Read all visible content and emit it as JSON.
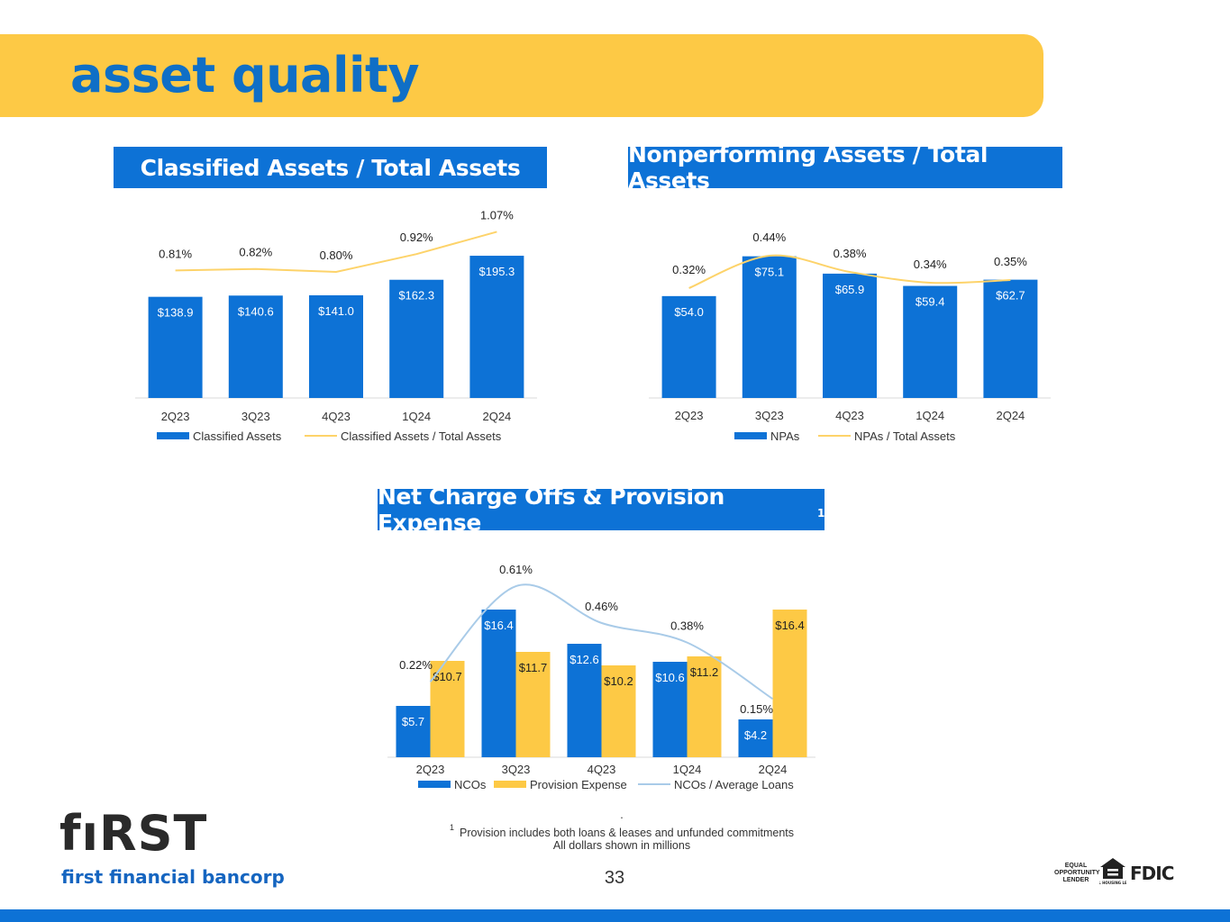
{
  "page": {
    "title": "asset quality",
    "page_number": "33",
    "footnote_dot": ".",
    "footnote_marker": "1",
    "footnote_line1": "Provision includes both loans & leases and unfunded commitments",
    "footnote_line2": "All dollars shown in millions",
    "logo_word": "fıRST",
    "logo_sub": "first financial bancorp",
    "badge_eol": [
      "EQUAL",
      "OPPORTUNITY",
      "LENDER"
    ],
    "badge_ehl": "EQUAL HOUSING LENDER",
    "badge_fdic": "FDIC"
  },
  "colors": {
    "blue": "#0d72d6",
    "gold": "#fdc945",
    "line_gold": "#fdd36a",
    "line_blue": "#a9cbe8",
    "axis": "#d9d9d9"
  },
  "chart_data": [
    {
      "type": "bar",
      "header": "Classified Assets / Total Assets",
      "categories": [
        "2Q23",
        "3Q23",
        "4Q23",
        "1Q24",
        "2Q24"
      ],
      "series": [
        {
          "name": "Classified Assets",
          "values": [
            138.9,
            140.6,
            141.0,
            162.3,
            195.3
          ],
          "labels": [
            "$138.9",
            "$140.6",
            "$141.0",
            "$162.3",
            "$195.3"
          ],
          "kind": "bar",
          "color": "#0d72d6"
        },
        {
          "name": "Classified Assets / Total Assets",
          "values": [
            0.81,
            0.82,
            0.8,
            0.92,
            1.07
          ],
          "labels": [
            "0.81%",
            "0.82%",
            "0.80%",
            "0.92%",
            "1.07%"
          ],
          "kind": "line",
          "color": "#fdd36a"
        }
      ],
      "legend": "bottom"
    },
    {
      "type": "bar",
      "header": "Nonperforming Assets / Total Assets",
      "categories": [
        "2Q23",
        "3Q23",
        "4Q23",
        "1Q24",
        "2Q24"
      ],
      "series": [
        {
          "name": "NPAs",
          "values": [
            54.0,
            75.1,
            65.9,
            59.4,
            62.7
          ],
          "labels": [
            "$54.0",
            "$75.1",
            "$65.9",
            "$59.4",
            "$62.7"
          ],
          "kind": "bar",
          "color": "#0d72d6"
        },
        {
          "name": "NPAs / Total Assets",
          "values": [
            0.32,
            0.44,
            0.38,
            0.34,
            0.35
          ],
          "labels": [
            "0.32%",
            "0.44%",
            "0.38%",
            "0.34%",
            "0.35%"
          ],
          "kind": "line",
          "color": "#fdd36a"
        }
      ],
      "legend": "bottom"
    },
    {
      "type": "bar",
      "header": "Net Charge Offs & Provision Expense",
      "header_sup": "1",
      "categories": [
        "2Q23",
        "3Q23",
        "4Q23",
        "1Q24",
        "2Q24"
      ],
      "series": [
        {
          "name": "NCOs",
          "values": [
            5.7,
            16.4,
            12.6,
            10.6,
            4.2
          ],
          "labels": [
            "$5.7",
            "$16.4",
            "$12.6",
            "$10.6",
            "$4.2"
          ],
          "kind": "bar",
          "color": "#0d72d6"
        },
        {
          "name": "Provision Expense",
          "values": [
            10.7,
            11.7,
            10.2,
            11.2,
            16.4
          ],
          "labels": [
            "$10.7",
            "$11.7",
            "$10.2",
            "$11.2",
            "$16.4"
          ],
          "kind": "bar",
          "color": "#fdc945"
        },
        {
          "name": "NCOs / Average Loans",
          "values": [
            0.22,
            0.61,
            0.46,
            0.38,
            0.15
          ],
          "labels": [
            "0.22%",
            "0.61%",
            "0.46%",
            "0.38%",
            "0.15%"
          ],
          "kind": "line",
          "color": "#a9cbe8"
        }
      ],
      "legend": "bottom"
    }
  ]
}
